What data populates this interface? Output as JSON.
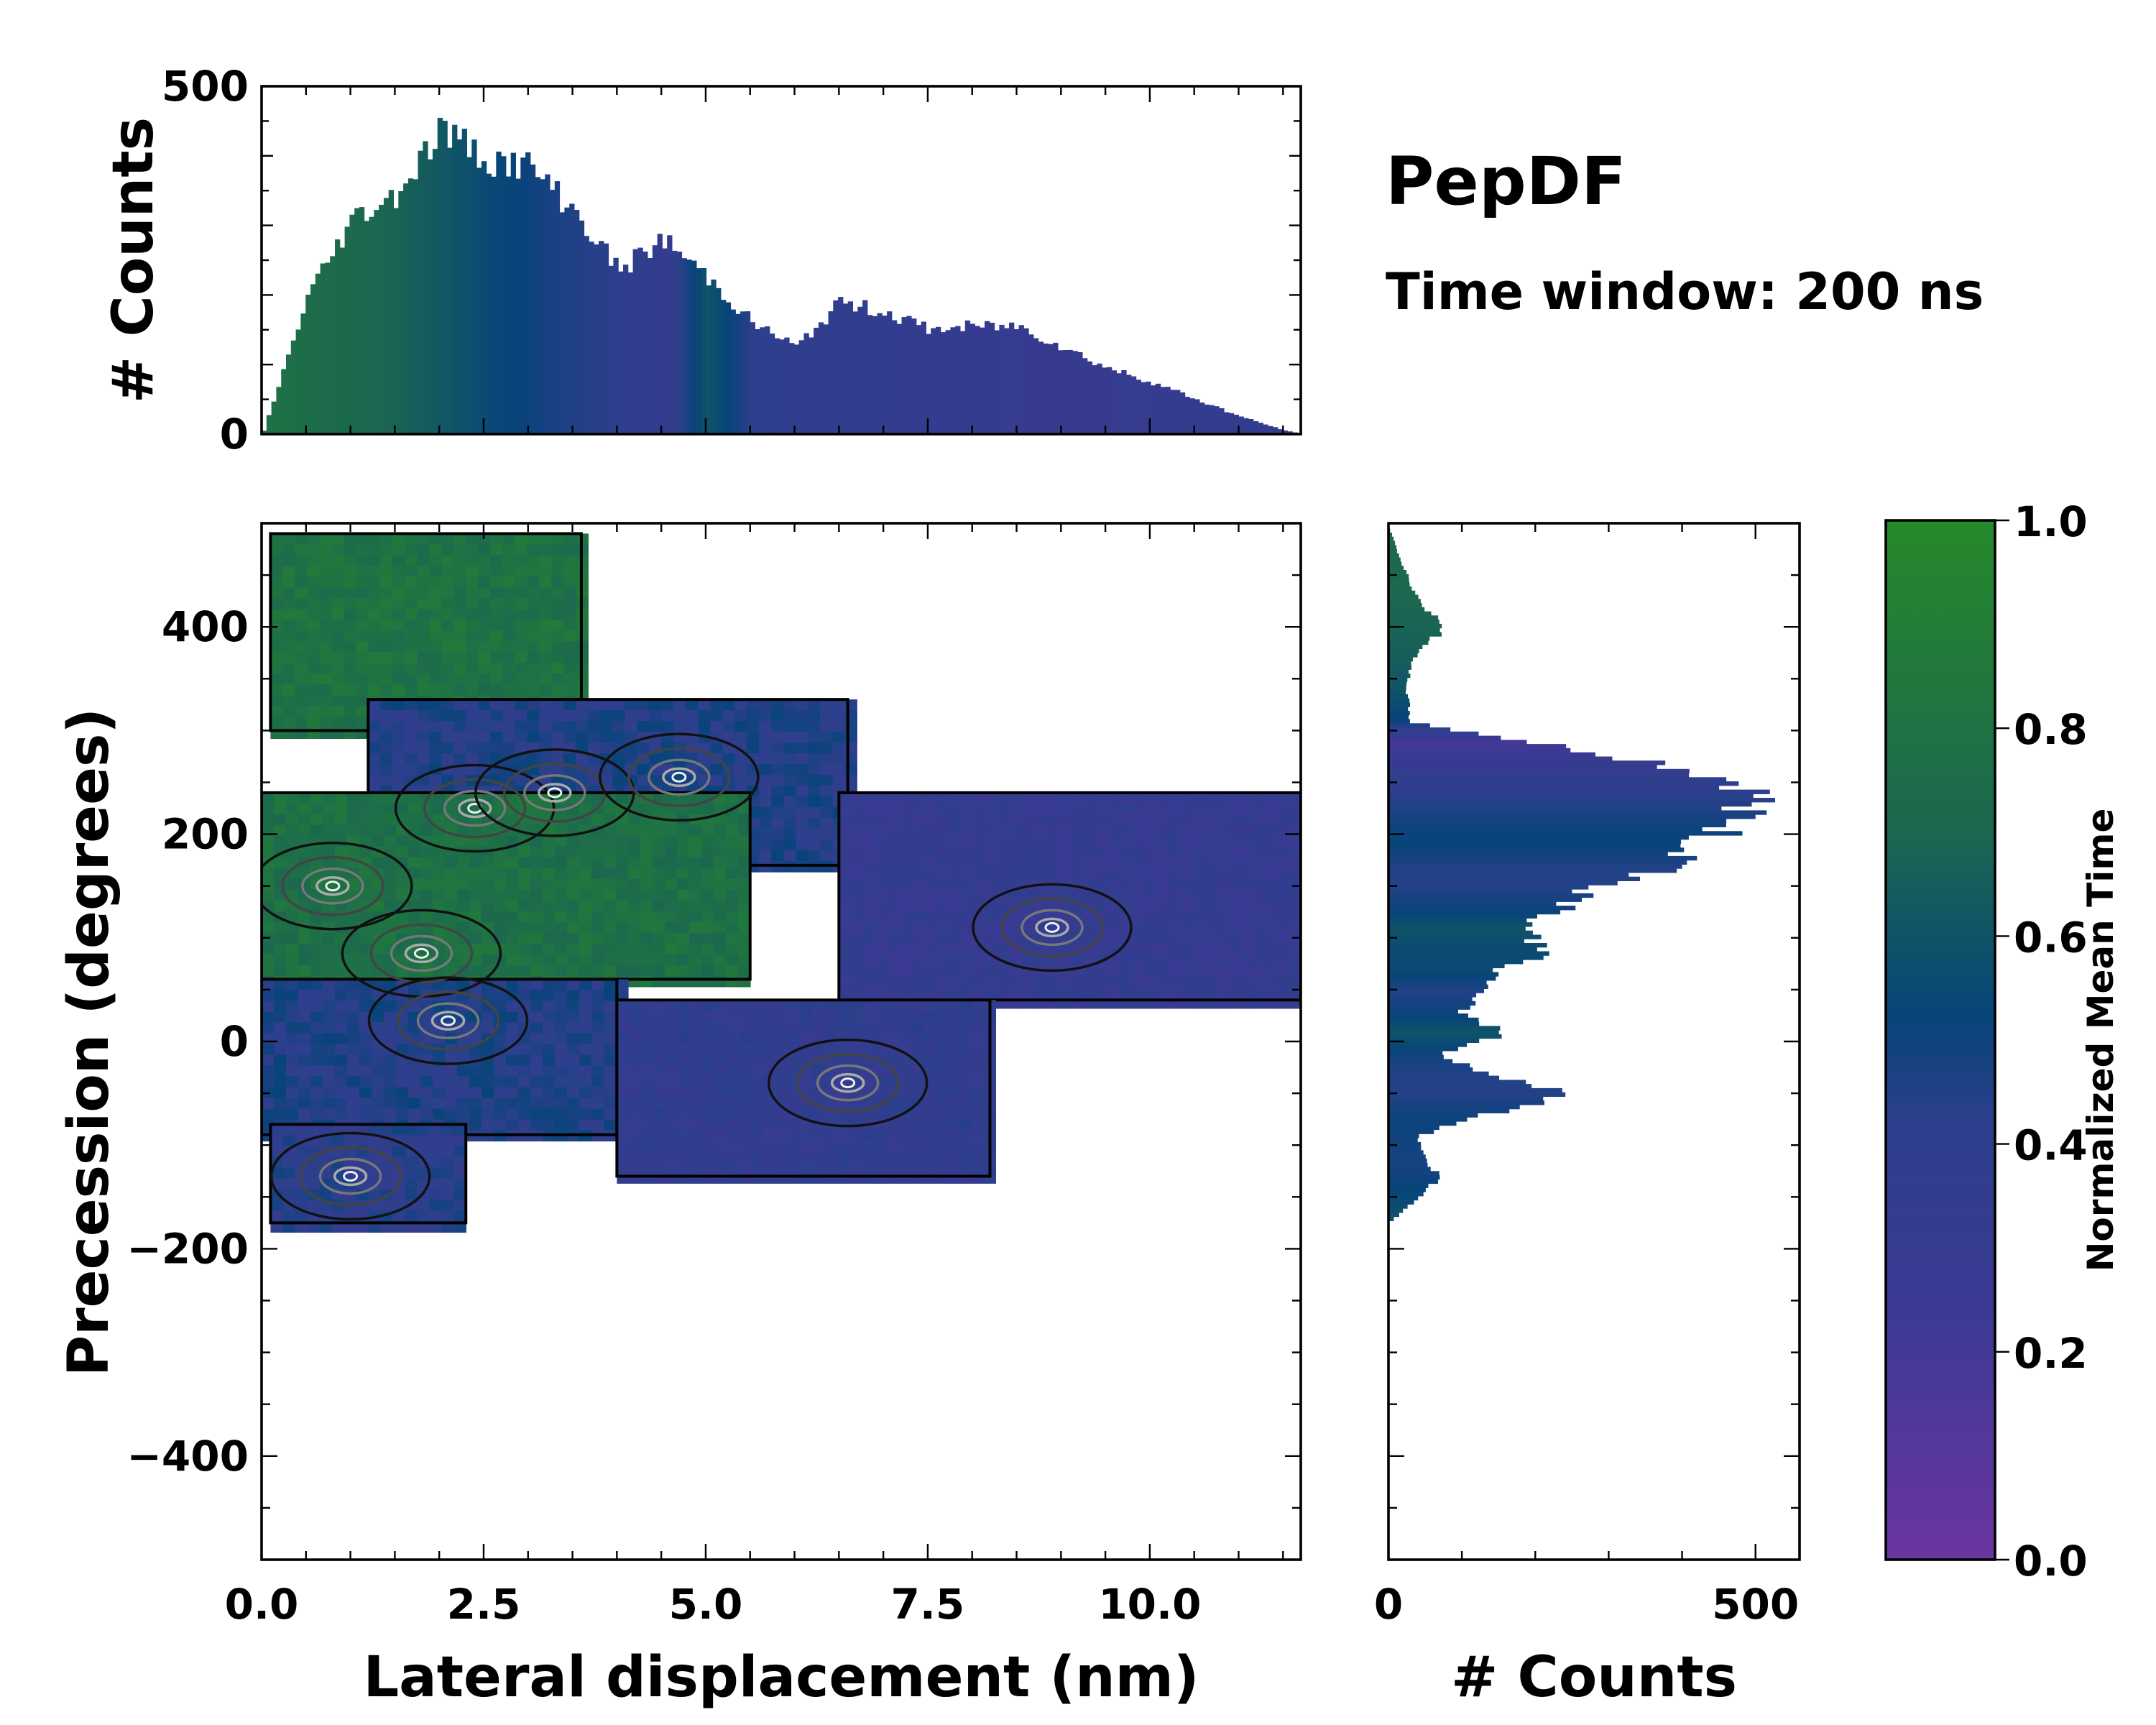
{
  "title": "PepDF",
  "subtitle": "Time window: 200 ns",
  "colormap": {
    "low": "#6a35a0",
    "mid1": "#2d3f8c",
    "mid2": "#07447a",
    "mid3": "#1b6750",
    "high": "#26892a"
  },
  "chart_data": [
    {
      "type": "heatmap",
      "name": "joint-distribution",
      "xlabel": "Lateral displacement (nm)",
      "ylabel": "Precession (degrees)",
      "xlim": [
        0,
        11.7
      ],
      "ylim": [
        -500,
        500
      ],
      "xticks": [
        0.0,
        2.5,
        5.0,
        7.5,
        10.0
      ],
      "xtick_labels": [
        "0.0",
        "2.5",
        "5.0",
        "7.5",
        "10.0"
      ],
      "yticks": [
        -400,
        -200,
        0,
        200,
        400
      ],
      "ytick_labels": [
        "−400",
        "−200",
        "0",
        "200",
        "400"
      ],
      "color_value": "Normalized Mean Time",
      "regions": [
        {
          "name": "upper-left-cluster",
          "x_range": [
            0.1,
            3.6
          ],
          "y_range": [
            300,
            490
          ],
          "mean_time": 0.8
        },
        {
          "name": "central-band",
          "x_range": [
            1.2,
            6.6
          ],
          "y_range": [
            170,
            330
          ],
          "mean_time": 0.45
        },
        {
          "name": "left-middle",
          "x_range": [
            0.0,
            5.5
          ],
          "y_range": [
            60,
            240
          ],
          "mean_time": 0.78
        },
        {
          "name": "right-arm",
          "x_range": [
            6.5,
            11.7
          ],
          "y_range": [
            40,
            240
          ],
          "mean_time": 0.32
        },
        {
          "name": "lower-left",
          "x_range": [
            0.0,
            4.0
          ],
          "y_range": [
            -90,
            60
          ],
          "mean_time": 0.45
        },
        {
          "name": "lower-middle",
          "x_range": [
            4.0,
            8.2
          ],
          "y_range": [
            -130,
            40
          ],
          "mean_time": 0.36
        },
        {
          "name": "bottom-left",
          "x_range": [
            0.1,
            2.3
          ],
          "y_range": [
            -175,
            -80
          ],
          "mean_time": 0.42
        }
      ],
      "density_peaks": [
        {
          "x": 2.4,
          "y": 225
        },
        {
          "x": 3.3,
          "y": 240
        },
        {
          "x": 4.7,
          "y": 255
        },
        {
          "x": 0.8,
          "y": 150
        },
        {
          "x": 1.8,
          "y": 85
        },
        {
          "x": 2.1,
          "y": 20
        },
        {
          "x": 8.9,
          "y": 110
        },
        {
          "x": 6.6,
          "y": -40
        },
        {
          "x": 1.0,
          "y": -130
        }
      ]
    },
    {
      "type": "bar",
      "name": "top-marginal-histogram",
      "ylabel": "# Counts",
      "xlim": [
        0,
        11.7
      ],
      "ylim": [
        0,
        500
      ],
      "yticks": [
        0,
        500
      ],
      "ytick_labels": [
        "0",
        "500"
      ],
      "x": [
        0.0,
        0.5,
        1.0,
        1.5,
        2.0,
        2.5,
        3.0,
        3.5,
        4.0,
        4.5,
        5.0,
        5.5,
        6.0,
        6.5,
        7.0,
        7.5,
        8.0,
        8.5,
        9.0,
        9.5,
        10.0,
        10.5,
        11.0,
        11.5,
        11.7
      ],
      "values": [
        5,
        200,
        310,
        345,
        440,
        395,
        385,
        320,
        235,
        280,
        225,
        160,
        125,
        190,
        175,
        150,
        155,
        155,
        125,
        95,
        75,
        50,
        25,
        5,
        0
      ],
      "mean_time": [
        0.8,
        0.75,
        0.72,
        0.68,
        0.62,
        0.55,
        0.5,
        0.45,
        0.42,
        0.32,
        0.6,
        0.42,
        0.38,
        0.36,
        0.34,
        0.33,
        0.32,
        0.3,
        0.3,
        0.3,
        0.31,
        0.32,
        0.33,
        0.34,
        0.34
      ]
    },
    {
      "type": "bar",
      "name": "right-marginal-histogram",
      "orientation": "horizontal",
      "xlabel": "# Counts",
      "xlim": [
        0,
        560
      ],
      "ylim": [
        -500,
        500
      ],
      "xticks": [
        0,
        500
      ],
      "xtick_labels": [
        "0",
        "500"
      ],
      "y": [
        490,
        460,
        430,
        400,
        370,
        340,
        310,
        290,
        270,
        250,
        230,
        210,
        190,
        170,
        150,
        130,
        110,
        90,
        70,
        50,
        30,
        10,
        -10,
        -30,
        -50,
        -70,
        -90,
        -110,
        -130,
        -150,
        -170
      ],
      "values": [
        5,
        20,
        40,
        75,
        30,
        25,
        30,
        200,
        370,
        480,
        500,
        460,
        410,
        400,
        280,
        240,
        180,
        220,
        150,
        120,
        100,
        160,
        70,
        140,
        250,
        120,
        40,
        50,
        70,
        40,
        5
      ],
      "mean_time": [
        0.75,
        0.72,
        0.7,
        0.68,
        0.65,
        0.6,
        0.5,
        0.2,
        0.3,
        0.4,
        0.45,
        0.5,
        0.52,
        0.45,
        0.45,
        0.5,
        0.6,
        0.55,
        0.55,
        0.45,
        0.5,
        0.6,
        0.5,
        0.45,
        0.45,
        0.5,
        0.5,
        0.48,
        0.5,
        0.55,
        0.6
      ]
    },
    {
      "type": "colorbar",
      "name": "time-colorbar",
      "label": "Normalized Mean Time",
      "range": [
        0.0,
        1.0
      ],
      "ticks": [
        0.0,
        0.2,
        0.4,
        0.6,
        0.8,
        1.0
      ],
      "tick_labels": [
        "0.0",
        "0.2",
        "0.4",
        "0.6",
        "0.8",
        "1.0"
      ]
    }
  ]
}
